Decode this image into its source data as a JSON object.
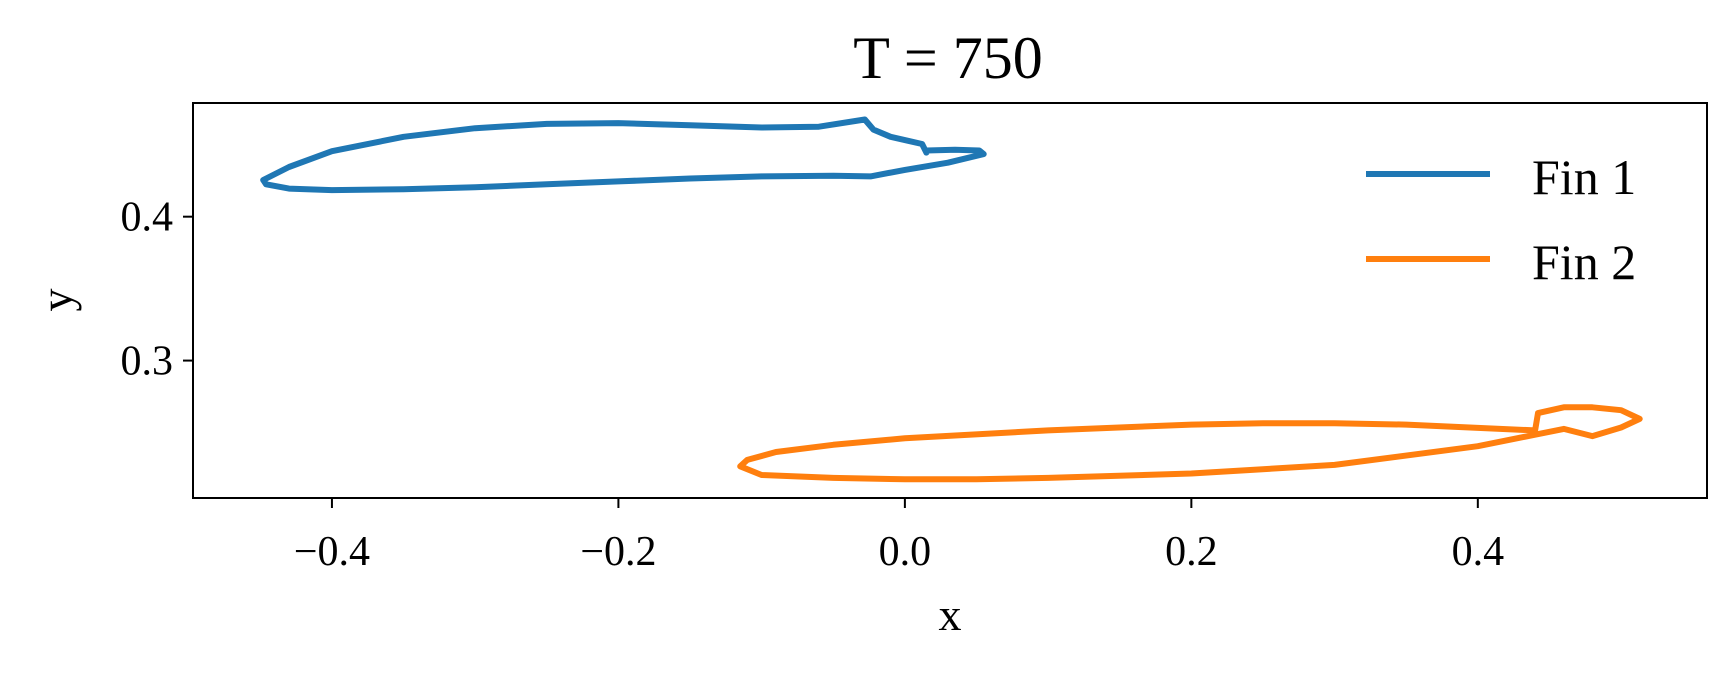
{
  "chart_data": {
    "type": "line",
    "title": "T = 750",
    "xlabel": "x",
    "ylabel": "y",
    "xlim": [
      -0.497,
      0.56
    ],
    "ylim": [
      0.2045,
      0.479
    ],
    "xticks": [
      -0.4,
      -0.2,
      0.0,
      0.2,
      0.4
    ],
    "xtick_labels": [
      "−0.4",
      "−0.2",
      "0.0",
      "0.2",
      "0.4"
    ],
    "yticks": [
      0.3,
      0.4
    ],
    "ytick_labels": [
      "0.3",
      "0.4"
    ],
    "grid": false,
    "legend_position": "top-right",
    "series": [
      {
        "name": "Fin 1",
        "color": "#1f77b4",
        "x": [
          -0.028,
          -0.06,
          -0.1,
          -0.15,
          -0.2,
          -0.25,
          -0.3,
          -0.35,
          -0.4,
          -0.43,
          -0.448,
          -0.446,
          -0.43,
          -0.4,
          -0.35,
          -0.3,
          -0.25,
          -0.2,
          -0.15,
          -0.1,
          -0.05,
          -0.024,
          0.0,
          0.03,
          0.055,
          0.052,
          0.035,
          0.015,
          0.015,
          0.012,
          0.003,
          -0.01,
          -0.022,
          -0.028
        ],
        "y": [
          0.4675,
          0.4625,
          0.462,
          0.4635,
          0.465,
          0.4645,
          0.4615,
          0.4555,
          0.4455,
          0.4345,
          0.4255,
          0.4225,
          0.4195,
          0.4185,
          0.419,
          0.4205,
          0.4225,
          0.4245,
          0.4265,
          0.428,
          0.4285,
          0.428,
          0.4325,
          0.4375,
          0.4435,
          0.446,
          0.4465,
          0.446,
          0.4445,
          0.4505,
          0.4525,
          0.4555,
          0.4605,
          0.4675
        ]
      },
      {
        "name": "Fin 2",
        "color": "#ff7f0e",
        "x": [
          0.44,
          0.35,
          0.3,
          0.25,
          0.2,
          0.1,
          0.0,
          -0.05,
          -0.09,
          -0.11,
          -0.115,
          -0.1,
          -0.05,
          0.0,
          0.05,
          0.1,
          0.2,
          0.3,
          0.4,
          0.44,
          0.46,
          0.48,
          0.5,
          0.513,
          0.5,
          0.48,
          0.46,
          0.442,
          0.44
        ],
        "y": [
          0.2515,
          0.2555,
          0.2565,
          0.2565,
          0.2555,
          0.2515,
          0.246,
          0.2415,
          0.2365,
          0.231,
          0.2265,
          0.2205,
          0.2185,
          0.2175,
          0.2175,
          0.2185,
          0.2215,
          0.2275,
          0.2405,
          0.2485,
          0.2525,
          0.2475,
          0.2535,
          0.2595,
          0.2655,
          0.2675,
          0.2675,
          0.2635,
          0.2515
        ]
      }
    ]
  }
}
